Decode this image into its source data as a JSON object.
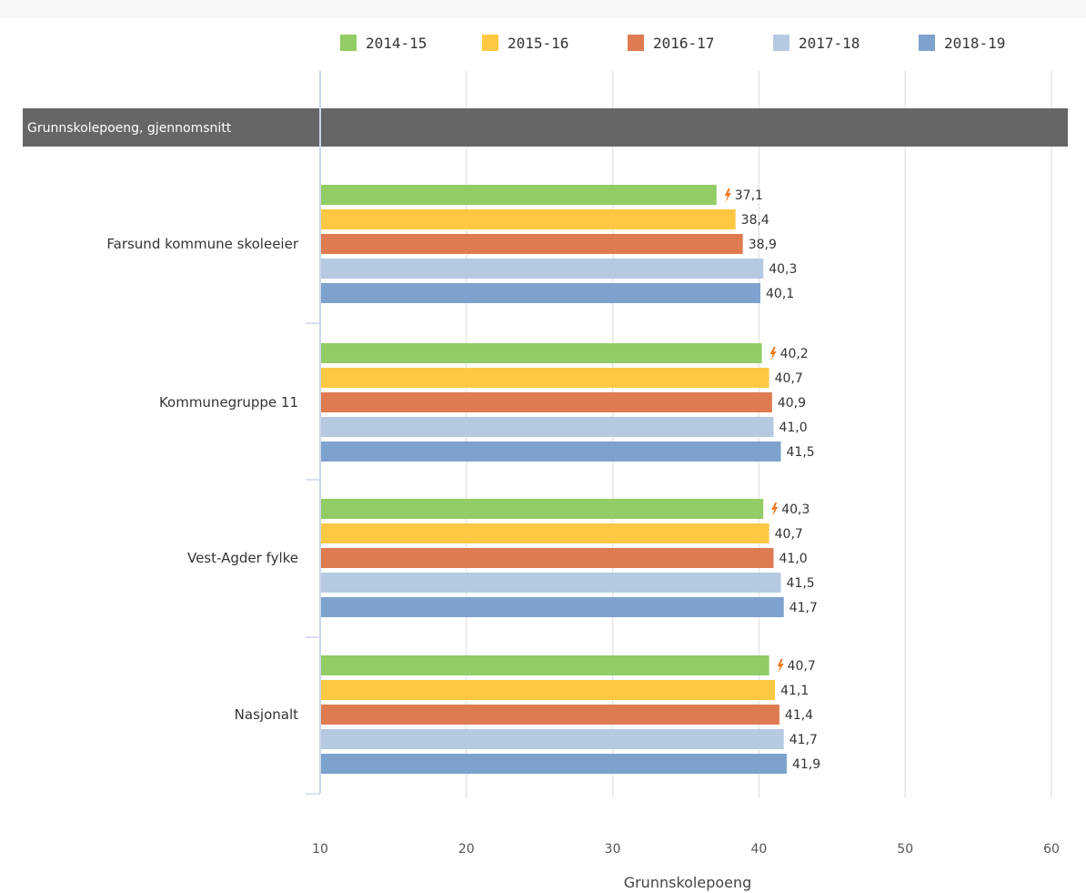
{
  "chart_data": {
    "type": "bar",
    "orientation": "horizontal",
    "section_title": "Grunnskolepoeng, gjennomsnitt",
    "xlabel": "Grunnskolepoeng",
    "ylabel": "",
    "xlim": [
      10,
      60
    ],
    "xticks": [
      "10",
      "20",
      "30",
      "40",
      "50",
      "60"
    ],
    "grid": true,
    "legend_position": "top-right",
    "categories": [
      "Farsund kommune skoleeier",
      "Kommunegruppe 11",
      "Vest-Agder fylke",
      "Nasjonalt"
    ],
    "series": [
      {
        "name": "2014-15",
        "color": "#91cc64",
        "values": [
          37.1,
          40.2,
          40.3,
          40.7
        ],
        "labels": [
          "37,1",
          "40,2",
          "40,3",
          "40,7"
        ],
        "flagged": true
      },
      {
        "name": "2015-16",
        "color": "#fec843",
        "values": [
          38.4,
          40.7,
          40.7,
          41.1
        ],
        "labels": [
          "38,4",
          "40,7",
          "40,7",
          "41,1"
        ]
      },
      {
        "name": "2016-17",
        "color": "#de7b50",
        "values": [
          38.9,
          40.9,
          41.0,
          41.4
        ],
        "labels": [
          "38,9",
          "40,9",
          "41,0",
          "41,4"
        ]
      },
      {
        "name": "2017-18",
        "color": "#b5cae0",
        "values": [
          40.3,
          41.0,
          41.5,
          41.7
        ],
        "labels": [
          "40,3",
          "41,0",
          "41,5",
          "41,7"
        ]
      },
      {
        "name": "2018-19",
        "color": "#7da2cd",
        "values": [
          40.1,
          41.5,
          41.7,
          41.9
        ],
        "labels": [
          "40,1",
          "41,5",
          "41,7",
          "41,9"
        ]
      }
    ],
    "flag_icon": "lightning-bolt-icon",
    "flag_color": "#f07a1f",
    "band_color": "#666666",
    "grid_color": "#e6e6e6",
    "axis_color": "#ccd6eb"
  }
}
